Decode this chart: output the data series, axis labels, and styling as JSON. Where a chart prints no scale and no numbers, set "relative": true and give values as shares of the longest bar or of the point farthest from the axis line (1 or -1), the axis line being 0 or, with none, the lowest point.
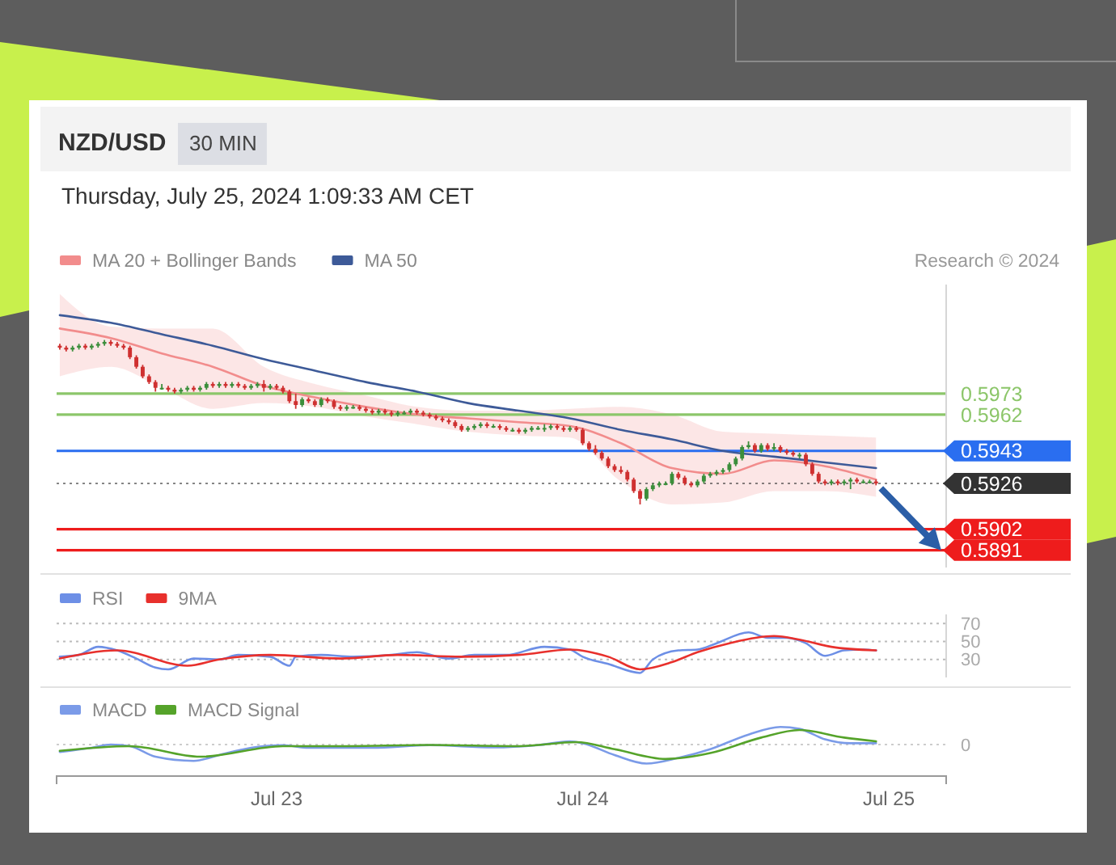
{
  "chart_data": [
    {
      "type": "candlestick",
      "title": "NZD/USD",
      "subtitle": "Thursday, July 25, 2024 1:09:33 AM CET",
      "annotations": [
        "30 MIN",
        "Research © 2024"
      ],
      "x": [
        "2024-07-22T07:00",
        "2024-07-22T07:30",
        "2024-07-22T08:00",
        "2024-07-22T08:30",
        "2024-07-22T09:00",
        "2024-07-22T09:30",
        "2024-07-22T10:00",
        "2024-07-22T10:30",
        "2024-07-22T11:00",
        "2024-07-22T11:30",
        "2024-07-22T12:00",
        "2024-07-22T12:30",
        "2024-07-22T13:00",
        "2024-07-22T13:30",
        "2024-07-22T14:00",
        "2024-07-22T14:30",
        "2024-07-22T15:00",
        "2024-07-22T15:30",
        "2024-07-22T16:00",
        "2024-07-22T16:30",
        "2024-07-22T17:00",
        "2024-07-22T17:30",
        "2024-07-22T18:00",
        "2024-07-22T18:30",
        "2024-07-22T19:00",
        "2024-07-22T19:30",
        "2024-07-22T20:00",
        "2024-07-22T20:30",
        "2024-07-22T21:00",
        "2024-07-22T21:30",
        "2024-07-22T22:00",
        "2024-07-22T22:30",
        "2024-07-22T23:00",
        "2024-07-22T23:30",
        "2024-07-23T00:00",
        "2024-07-23T00:30",
        "2024-07-23T01:00",
        "2024-07-23T01:30",
        "2024-07-23T02:00",
        "2024-07-23T02:30",
        "2024-07-23T03:00",
        "2024-07-23T03:30",
        "2024-07-23T04:00",
        "2024-07-23T04:30",
        "2024-07-23T05:00",
        "2024-07-23T05:30",
        "2024-07-23T06:00",
        "2024-07-23T06:30",
        "2024-07-23T07:00",
        "2024-07-23T07:30",
        "2024-07-23T08:00",
        "2024-07-23T08:30",
        "2024-07-23T09:00",
        "2024-07-23T09:30",
        "2024-07-23T10:00",
        "2024-07-23T10:30",
        "2024-07-23T11:00",
        "2024-07-23T11:30",
        "2024-07-23T12:00",
        "2024-07-23T12:30",
        "2024-07-23T13:00",
        "2024-07-23T13:30",
        "2024-07-23T14:00",
        "2024-07-23T14:30",
        "2024-07-23T15:00",
        "2024-07-23T15:30",
        "2024-07-23T16:00",
        "2024-07-23T16:30",
        "2024-07-23T17:00",
        "2024-07-23T17:30",
        "2024-07-23T18:00",
        "2024-07-23T18:30",
        "2024-07-23T19:00",
        "2024-07-23T19:30",
        "2024-07-23T20:00",
        "2024-07-23T20:30",
        "2024-07-23T21:00",
        "2024-07-23T21:30",
        "2024-07-23T22:00",
        "2024-07-23T22:30",
        "2024-07-23T23:00",
        "2024-07-23T23:30",
        "2024-07-24T00:00",
        "2024-07-24T00:30",
        "2024-07-24T01:00",
        "2024-07-24T01:30",
        "2024-07-24T02:00",
        "2024-07-24T02:30",
        "2024-07-24T03:00",
        "2024-07-24T03:30",
        "2024-07-24T04:00",
        "2024-07-24T04:30",
        "2024-07-24T05:00",
        "2024-07-24T05:30",
        "2024-07-24T06:00",
        "2024-07-24T06:30",
        "2024-07-24T07:00",
        "2024-07-24T07:30",
        "2024-07-24T08:00",
        "2024-07-24T08:30",
        "2024-07-24T09:00",
        "2024-07-24T09:30",
        "2024-07-24T10:00",
        "2024-07-24T10:30",
        "2024-07-24T11:00",
        "2024-07-24T11:30",
        "2024-07-24T12:00",
        "2024-07-24T12:30",
        "2024-07-24T13:00",
        "2024-07-24T13:30",
        "2024-07-24T14:00",
        "2024-07-24T14:30",
        "2024-07-24T15:00",
        "2024-07-24T15:30",
        "2024-07-24T16:00",
        "2024-07-24T16:30",
        "2024-07-24T17:00",
        "2024-07-24T17:30",
        "2024-07-24T18:00",
        "2024-07-24T18:30",
        "2024-07-24T19:00",
        "2024-07-24T19:30",
        "2024-07-24T20:00",
        "2024-07-24T20:30",
        "2024-07-24T21:00",
        "2024-07-24T21:30",
        "2024-07-24T22:00",
        "2024-07-24T22:30",
        "2024-07-24T23:00"
      ],
      "ohlc": [
        [
          0.5998,
          0.5999,
          0.5996,
          0.5997
        ],
        [
          0.5997,
          0.5998,
          0.5995,
          0.5996
        ],
        [
          0.5996,
          0.5998,
          0.5995,
          0.5997
        ],
        [
          0.5997,
          0.5999,
          0.5996,
          0.5998
        ],
        [
          0.5998,
          0.5999,
          0.5996,
          0.5997
        ],
        [
          0.5997,
          0.5999,
          0.5996,
          0.5998
        ],
        [
          0.5998,
          0.6,
          0.5997,
          0.5999
        ],
        [
          0.5999,
          0.6001,
          0.5998,
          0.6
        ],
        [
          0.6,
          0.6001,
          0.5998,
          0.5999
        ],
        [
          0.5999,
          0.6,
          0.5997,
          0.5998
        ],
        [
          0.5998,
          0.5999,
          0.5996,
          0.5997
        ],
        [
          0.5997,
          0.5998,
          0.5991,
          0.5992
        ],
        [
          0.5992,
          0.5993,
          0.5986,
          0.5987
        ],
        [
          0.5987,
          0.5988,
          0.5981,
          0.5982
        ],
        [
          0.5982,
          0.5983,
          0.5978,
          0.5979
        ],
        [
          0.5979,
          0.598,
          0.5974,
          0.5976
        ],
        [
          0.5976,
          0.5978,
          0.5975,
          0.5976
        ],
        [
          0.5976,
          0.5977,
          0.5974,
          0.5975
        ],
        [
          0.5975,
          0.5976,
          0.5973,
          0.5974
        ],
        [
          0.5974,
          0.5976,
          0.5973,
          0.5975
        ],
        [
          0.5975,
          0.5977,
          0.5974,
          0.5976
        ],
        [
          0.5976,
          0.5977,
          0.5974,
          0.5975
        ],
        [
          0.5975,
          0.5977,
          0.5974,
          0.5976
        ],
        [
          0.5976,
          0.5979,
          0.5975,
          0.5978
        ],
        [
          0.5978,
          0.5979,
          0.5976,
          0.5977
        ],
        [
          0.5977,
          0.5979,
          0.5976,
          0.5978
        ],
        [
          0.5978,
          0.5979,
          0.5976,
          0.5977
        ],
        [
          0.5977,
          0.5979,
          0.5976,
          0.5978
        ],
        [
          0.5978,
          0.5979,
          0.5976,
          0.5977
        ],
        [
          0.5977,
          0.5978,
          0.5975,
          0.5976
        ],
        [
          0.5976,
          0.5978,
          0.5975,
          0.5977
        ],
        [
          0.5977,
          0.5979,
          0.5976,
          0.5978
        ],
        [
          0.5978,
          0.598,
          0.5974,
          0.5976
        ],
        [
          0.5976,
          0.5978,
          0.5975,
          0.5977
        ],
        [
          0.5977,
          0.5978,
          0.5975,
          0.5976
        ],
        [
          0.5976,
          0.5977,
          0.5973,
          0.5974
        ],
        [
          0.5974,
          0.5975,
          0.5968,
          0.5969
        ],
        [
          0.5969,
          0.5973,
          0.5965,
          0.5967
        ],
        [
          0.5967,
          0.5971,
          0.5966,
          0.597
        ],
        [
          0.597,
          0.5971,
          0.5968,
          0.5969
        ],
        [
          0.5969,
          0.597,
          0.5966,
          0.5967
        ],
        [
          0.5967,
          0.5971,
          0.5966,
          0.597
        ],
        [
          0.597,
          0.5971,
          0.5968,
          0.5969
        ],
        [
          0.5969,
          0.597,
          0.5965,
          0.5966
        ],
        [
          0.5966,
          0.5967,
          0.5964,
          0.5965
        ],
        [
          0.5965,
          0.5967,
          0.5964,
          0.5966
        ],
        [
          0.5966,
          0.5967,
          0.5965,
          0.5966
        ],
        [
          0.5966,
          0.5967,
          0.5964,
          0.5965
        ],
        [
          0.5965,
          0.5966,
          0.5963,
          0.5964
        ],
        [
          0.5964,
          0.5965,
          0.5962,
          0.5963
        ],
        [
          0.5963,
          0.5965,
          0.5962,
          0.5964
        ],
        [
          0.5964,
          0.5965,
          0.5962,
          0.5963
        ],
        [
          0.5963,
          0.5964,
          0.5961,
          0.5962
        ],
        [
          0.5962,
          0.5964,
          0.5961,
          0.5963
        ],
        [
          0.5963,
          0.5964,
          0.5962,
          0.5963
        ],
        [
          0.5963,
          0.5965,
          0.5962,
          0.5964
        ],
        [
          0.5964,
          0.5965,
          0.5962,
          0.5963
        ],
        [
          0.5963,
          0.5964,
          0.5961,
          0.5962
        ],
        [
          0.5962,
          0.5963,
          0.596,
          0.5961
        ],
        [
          0.5961,
          0.5962,
          0.5959,
          0.596
        ],
        [
          0.596,
          0.5961,
          0.5958,
          0.5959
        ],
        [
          0.5959,
          0.596,
          0.5957,
          0.5958
        ],
        [
          0.5958,
          0.5959,
          0.5955,
          0.5956
        ],
        [
          0.5956,
          0.5957,
          0.5953,
          0.5954
        ],
        [
          0.5954,
          0.5956,
          0.5953,
          0.5955
        ],
        [
          0.5955,
          0.5957,
          0.5954,
          0.5956
        ],
        [
          0.5956,
          0.5958,
          0.5955,
          0.5957
        ],
        [
          0.5957,
          0.5958,
          0.5955,
          0.5956
        ],
        [
          0.5956,
          0.5957,
          0.5955,
          0.5956
        ],
        [
          0.5956,
          0.5957,
          0.5954,
          0.5955
        ],
        [
          0.5955,
          0.5956,
          0.5953,
          0.5954
        ],
        [
          0.5954,
          0.5955,
          0.5953,
          0.5954
        ],
        [
          0.5954,
          0.5955,
          0.5952,
          0.5953
        ],
        [
          0.5953,
          0.5955,
          0.5952,
          0.5954
        ],
        [
          0.5954,
          0.5956,
          0.5953,
          0.5955
        ],
        [
          0.5955,
          0.5956,
          0.5954,
          0.5955
        ],
        [
          0.5955,
          0.5957,
          0.5953,
          0.5955
        ],
        [
          0.5955,
          0.5957,
          0.5954,
          0.5956
        ],
        [
          0.5956,
          0.5957,
          0.5954,
          0.5955
        ],
        [
          0.5955,
          0.5956,
          0.5953,
          0.5954
        ],
        [
          0.5954,
          0.5956,
          0.5953,
          0.5955
        ],
        [
          0.5955,
          0.5956,
          0.5953,
          0.5954
        ],
        [
          0.5954,
          0.5955,
          0.5946,
          0.5947
        ],
        [
          0.5947,
          0.5948,
          0.5943,
          0.5944
        ],
        [
          0.5944,
          0.5946,
          0.5941,
          0.5942
        ],
        [
          0.5942,
          0.5943,
          0.5938,
          0.5939
        ],
        [
          0.5939,
          0.594,
          0.5934,
          0.5935
        ],
        [
          0.5935,
          0.5936,
          0.5932,
          0.5933
        ],
        [
          0.5933,
          0.5935,
          0.5931,
          0.5932
        ],
        [
          0.5932,
          0.5933,
          0.5927,
          0.5928
        ],
        [
          0.5928,
          0.5929,
          0.5921,
          0.5922
        ],
        [
          0.5922,
          0.5923,
          0.5915,
          0.5918
        ],
        [
          0.5918,
          0.5924,
          0.5917,
          0.5923
        ],
        [
          0.5923,
          0.5926,
          0.5922,
          0.5925
        ],
        [
          0.5925,
          0.5927,
          0.5924,
          0.5926
        ],
        [
          0.5926,
          0.5927,
          0.5925,
          0.5926
        ],
        [
          0.5926,
          0.5932,
          0.5925,
          0.5931
        ],
        [
          0.5931,
          0.5932,
          0.5928,
          0.5929
        ],
        [
          0.5929,
          0.593,
          0.5925,
          0.5926
        ],
        [
          0.5926,
          0.5927,
          0.5924,
          0.5925
        ],
        [
          0.5925,
          0.5928,
          0.5924,
          0.5927
        ],
        [
          0.5927,
          0.5931,
          0.5926,
          0.593
        ],
        [
          0.593,
          0.5932,
          0.5929,
          0.5931
        ],
        [
          0.5931,
          0.5933,
          0.593,
          0.5932
        ],
        [
          0.5932,
          0.5934,
          0.5931,
          0.5933
        ],
        [
          0.5933,
          0.5937,
          0.5932,
          0.5936
        ],
        [
          0.5936,
          0.594,
          0.5935,
          0.5939
        ],
        [
          0.5939,
          0.5946,
          0.5938,
          0.5945
        ],
        [
          0.5945,
          0.5948,
          0.5944,
          0.5946
        ],
        [
          0.5946,
          0.5947,
          0.5942,
          0.5943
        ],
        [
          0.5943,
          0.5947,
          0.5942,
          0.5946
        ],
        [
          0.5946,
          0.5947,
          0.5943,
          0.5944
        ],
        [
          0.5944,
          0.5947,
          0.5943,
          0.5945
        ],
        [
          0.5945,
          0.5946,
          0.5942,
          0.5943
        ],
        [
          0.5943,
          0.5944,
          0.5941,
          0.5942
        ],
        [
          0.5942,
          0.5943,
          0.594,
          0.5941
        ],
        [
          0.5941,
          0.5942,
          0.5939,
          0.5941
        ],
        [
          0.5941,
          0.5942,
          0.5935,
          0.5936
        ],
        [
          0.5936,
          0.5937,
          0.593,
          0.5931
        ],
        [
          0.5931,
          0.5932,
          0.5926,
          0.5927
        ],
        [
          0.5927,
          0.5928,
          0.5925,
          0.5926
        ],
        [
          0.5926,
          0.5928,
          0.5925,
          0.5927
        ],
        [
          0.5927,
          0.5928,
          0.5925,
          0.5926
        ],
        [
          0.5926,
          0.5928,
          0.5925,
          0.5927
        ],
        [
          0.5927,
          0.5929,
          0.5923,
          0.5928
        ],
        [
          0.5928,
          0.5929,
          0.5926,
          0.5927
        ],
        [
          0.5927,
          0.5928,
          0.5926,
          0.5927
        ],
        [
          0.5927,
          0.5928,
          0.5926,
          0.5927
        ],
        [
          0.5927,
          0.5928,
          0.5925,
          0.5926
        ]
      ],
      "series": [
        {
          "name": "MA 20 + Bollinger Bands",
          "type": "line",
          "color": "#f28c8c",
          "x": [
            "2024-07-22T07:00",
            "2024-07-22T11:00",
            "2024-07-22T15:00",
            "2024-07-22T19:00",
            "2024-07-22T23:00",
            "2024-07-23T03:00",
            "2024-07-23T07:00",
            "2024-07-23T11:00",
            "2024-07-23T15:00",
            "2024-07-23T19:00",
            "2024-07-23T23:00",
            "2024-07-24T03:00",
            "2024-07-24T07:00",
            "2024-07-24T11:00",
            "2024-07-24T15:00",
            "2024-07-24T19:00",
            "2024-07-24T23:00"
          ],
          "values": [
            0.6007,
            0.6002,
            0.5994,
            0.5987,
            0.5977,
            0.5971,
            0.5966,
            0.5962,
            0.596,
            0.5958,
            0.5956,
            0.5947,
            0.5934,
            0.5931,
            0.5938,
            0.5935,
            0.5928
          ],
          "lower": [
            0.5982,
            0.5987,
            0.5976,
            0.5965,
            0.5968,
            0.5966,
            0.5961,
            0.5957,
            0.5953,
            0.5951,
            0.595,
            0.5927,
            0.5915,
            0.5916,
            0.5922,
            0.5922,
            0.5919
          ],
          "upper": [
            0.6025,
            0.6008,
            0.6007,
            0.6007,
            0.5987,
            0.5978,
            0.5972,
            0.5966,
            0.5964,
            0.5964,
            0.5965,
            0.5966,
            0.5962,
            0.5953,
            0.5952,
            0.5951,
            0.595
          ]
        },
        {
          "name": "MA 50",
          "type": "line",
          "color": "#3d5a98",
          "x": [
            "2024-07-22T07:00",
            "2024-07-22T11:00",
            "2024-07-22T15:00",
            "2024-07-22T19:00",
            "2024-07-22T23:00",
            "2024-07-23T03:00",
            "2024-07-23T07:00",
            "2024-07-23T11:00",
            "2024-07-23T15:00",
            "2024-07-23T19:00",
            "2024-07-23T23:00",
            "2024-07-24T03:00",
            "2024-07-24T07:00",
            "2024-07-24T11:00",
            "2024-07-24T15:00",
            "2024-07-24T19:00",
            "2024-07-24T23:00"
          ],
          "values": [
            0.6014,
            0.601,
            0.6004,
            0.5998,
            0.5991,
            0.5985,
            0.5979,
            0.5974,
            0.5968,
            0.5964,
            0.596,
            0.5954,
            0.5949,
            0.5943,
            0.594,
            0.5937,
            0.5934
          ]
        }
      ],
      "xlim": [
        "2024-07-22T06:45",
        "2024-07-25T04:30"
      ],
      "ylim": [
        0.5882,
        0.603
      ],
      "yticks": [
        0.5891,
        0.5902,
        0.5926,
        0.5943,
        0.5962,
        0.5973
      ],
      "ref_lines": [
        {
          "axis": "y",
          "value": 0.5973,
          "color": "#8cc66a"
        },
        {
          "axis": "y",
          "value": 0.5962,
          "color": "#8cc66a"
        },
        {
          "axis": "y",
          "value": 0.5943,
          "color": "#2a6ef0"
        },
        {
          "axis": "y",
          "value": 0.5926,
          "color": "#333333",
          "line_style": "dotted"
        },
        {
          "axis": "y",
          "value": 0.5902,
          "color": "#ee1c1c"
        },
        {
          "axis": "y",
          "value": 0.5891,
          "color": "#ee1c1c"
        }
      ],
      "legend": "top left",
      "tick_labels": "y"
    },
    {
      "type": "line",
      "series": [
        {
          "name": "RSI",
          "color": "#6d8fe6",
          "x": [
            "2024-07-22T07:00",
            "2024-07-22T08:30",
            "2024-07-22T10:00",
            "2024-07-22T11:30",
            "2024-07-22T13:00",
            "2024-07-22T14:30",
            "2024-07-22T15:30",
            "2024-07-22T17:30",
            "2024-07-22T19:30",
            "2024-07-22T21:00",
            "2024-07-22T23:30",
            "2024-07-23T01:00",
            "2024-07-23T01:30",
            "2024-07-23T03:30",
            "2024-07-23T06:00",
            "2024-07-23T09:00",
            "2024-07-23T11:00",
            "2024-07-23T13:30",
            "2024-07-23T15:30",
            "2024-07-23T18:00",
            "2024-07-23T21:00",
            "2024-07-23T23:00",
            "2024-07-24T00:00",
            "2024-07-24T02:00",
            "2024-07-24T04:30",
            "2024-07-24T05:30",
            "2024-07-24T07:30",
            "2024-07-24T09:00",
            "2024-07-24T10:30",
            "2024-07-24T13:00",
            "2024-07-24T14:30",
            "2024-07-24T16:00",
            "2024-07-24T17:30",
            "2024-07-24T19:00",
            "2024-07-24T20:30",
            "2024-07-24T22:00",
            "2024-07-24T23:00"
          ],
          "values": [
            33,
            35,
            44,
            40,
            31,
            21,
            19,
            31,
            30,
            35,
            33,
            23,
            33,
            35,
            33,
            35,
            38,
            31,
            35,
            35,
            44,
            41,
            33,
            25,
            15,
            30,
            40,
            41,
            48,
            60,
            54,
            54,
            48,
            34,
            40,
            41,
            40
          ]
        },
        {
          "name": "9MA",
          "color": "#e8302c",
          "x": [
            "2024-07-22T07:00",
            "2024-07-22T11:30",
            "2024-07-22T17:00",
            "2024-07-22T19:30",
            "2024-07-22T23:30",
            "2024-07-23T05:00",
            "2024-07-23T09:30",
            "2024-07-23T14:30",
            "2024-07-23T19:00",
            "2024-07-23T23:00",
            "2024-07-24T02:00",
            "2024-07-24T04:30",
            "2024-07-24T07:00",
            "2024-07-24T09:00",
            "2024-07-24T11:30",
            "2024-07-24T15:00",
            "2024-07-24T17:00",
            "2024-07-24T19:30",
            "2024-07-24T23:00"
          ],
          "values": [
            31,
            40,
            23,
            30,
            35,
            31,
            35,
            33,
            35,
            41,
            33,
            19,
            27,
            38,
            48,
            56,
            52,
            44,
            40
          ]
        }
      ],
      "xlim": [
        "2024-07-22T06:45",
        "2024-07-25T04:30"
      ],
      "ylim": [
        10,
        80
      ],
      "yticks": [
        30,
        50,
        70
      ],
      "grid": "y",
      "legend": "top left",
      "tick_labels": "y"
    },
    {
      "type": "line",
      "relative": true,
      "series": [
        {
          "name": "MACD",
          "color": "#7b9be8",
          "x": [
            "2024-07-22T07:00",
            "2024-07-22T09:30",
            "2024-07-22T11:00",
            "2024-07-22T12:30",
            "2024-07-22T14:30",
            "2024-07-22T17:30",
            "2024-07-22T19:30",
            "2024-07-22T22:00",
            "2024-07-23T00:30",
            "2024-07-23T02:30",
            "2024-07-23T07:30",
            "2024-07-23T12:00",
            "2024-07-23T17:00",
            "2024-07-23T20:30",
            "2024-07-23T23:00",
            "2024-07-24T00:00",
            "2024-07-24T02:30",
            "2024-07-24T05:00",
            "2024-07-24T07:30",
            "2024-07-24T10:00",
            "2024-07-24T13:00",
            "2024-07-24T15:30",
            "2024-07-24T17:00",
            "2024-07-24T19:00",
            "2024-07-24T21:00",
            "2024-07-24T23:00"
          ],
          "values": [
            -0.39,
            -0.17,
            0,
            -0.08,
            -0.64,
            -0.86,
            -0.55,
            -0.17,
            -0.03,
            -0.17,
            -0.17,
            -0.03,
            -0.15,
            -0.03,
            0.17,
            0.07,
            -0.55,
            -1,
            -0.7,
            -0.24,
            0.53,
            0.93,
            0.83,
            0.28,
            0.07,
            0.07
          ]
        },
        {
          "name": "MACD Signal",
          "color": "#55a32a",
          "x": [
            "2024-07-22T07:00",
            "2024-07-22T12:30",
            "2024-07-22T18:00",
            "2024-07-23T00:30",
            "2024-07-23T05:00",
            "2024-07-23T12:00",
            "2024-07-23T19:00",
            "2024-07-23T23:30",
            "2024-07-24T02:30",
            "2024-07-24T06:30",
            "2024-07-24T10:00",
            "2024-07-24T14:00",
            "2024-07-24T17:00",
            "2024-07-24T20:30",
            "2024-07-24T23:00"
          ],
          "values": [
            -0.33,
            -0.08,
            -0.64,
            -0.08,
            -0.08,
            -0.02,
            -0.08,
            0.13,
            -0.24,
            -0.76,
            -0.45,
            0.37,
            0.77,
            0.37,
            0.17
          ]
        }
      ],
      "xlim": [
        "2024-07-22T06:45",
        "2024-07-25T04:30"
      ],
      "xticks": [
        {
          "value": "2024-07-23",
          "label": "Jul 23"
        },
        {
          "value": "2024-07-24",
          "label": "Jul 24"
        },
        {
          "value": "2024-07-25",
          "label": "Jul 25"
        }
      ],
      "ref_lines": [
        {
          "axis": "y",
          "value": 0,
          "label": "0",
          "color": "#aaaaaa",
          "line_style": "dotted"
        }
      ],
      "legend": "top left",
      "tick_labels": "x"
    }
  ]
}
